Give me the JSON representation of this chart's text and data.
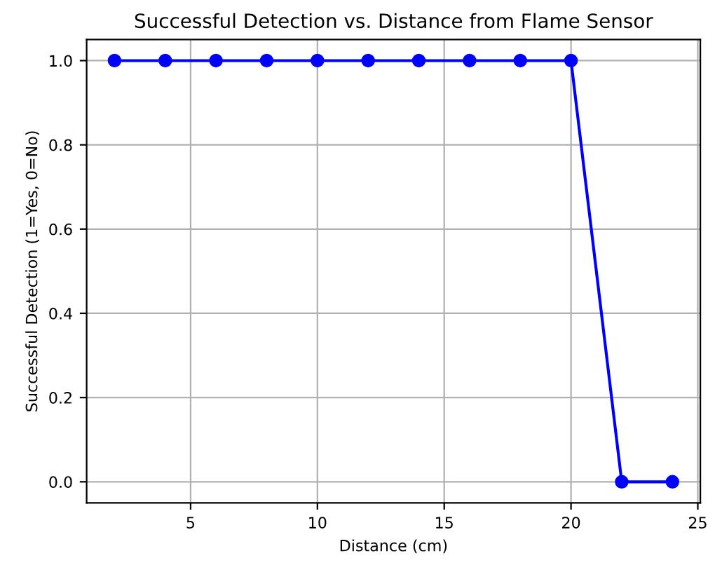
{
  "chart_data": {
    "type": "line",
    "title": "Successful Detection vs. Distance from Flame Sensor",
    "xlabel": "Distance (cm)",
    "ylabel": "Successful Detection (1=Yes, 0=No)",
    "x": [
      2,
      4,
      6,
      8,
      10,
      12,
      14,
      16,
      18,
      20,
      22,
      24
    ],
    "series": [
      {
        "color": "#0000ff",
        "values": [
          1,
          1,
          1,
          1,
          1,
          1,
          1,
          1,
          1,
          1,
          0,
          0
        ]
      }
    ],
    "xlim": [
      0.9,
      25.1
    ],
    "xticks": [
      5,
      10,
      15,
      20,
      25
    ],
    "ylim": [
      -0.05,
      1.05
    ],
    "yticks": [
      {
        "value": 0,
        "label": "0.0"
      },
      0.2,
      0.4,
      0.6,
      0.8,
      {
        "value": 1,
        "label": "1.0"
      }
    ],
    "grid": true,
    "marker": "circle",
    "line_style": "solid"
  }
}
